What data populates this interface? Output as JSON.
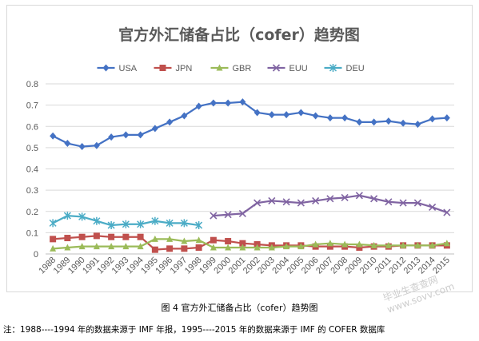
{
  "chart_data": {
    "type": "line",
    "title": "官方外汇储备占比（cofer）趋势图",
    "xlabel": "",
    "ylabel": "",
    "ylim": [
      0,
      0.8
    ],
    "yticks": [
      "0",
      "0.1",
      "0.2",
      "0.3",
      "0.4",
      "0.5",
      "0.6",
      "0.7",
      "0.8"
    ],
    "categories": [
      "1988",
      "1989",
      "1990",
      "1991",
      "1992",
      "1993",
      "1994",
      "1995",
      "1996",
      "1997",
      "1998",
      "1999",
      "2000",
      "2001",
      "2002",
      "2003",
      "2004",
      "2005",
      "2006",
      "2007",
      "2008",
      "2009",
      "2010",
      "2011",
      "2012",
      "2013",
      "2014",
      "2015"
    ],
    "grid": true,
    "legend_position": "top",
    "series": [
      {
        "name": "USA",
        "color": "#4472c4",
        "marker": "diamond",
        "values": [
          0.555,
          0.52,
          0.505,
          0.51,
          0.55,
          0.56,
          0.56,
          0.59,
          0.62,
          0.65,
          0.695,
          0.71,
          0.71,
          0.715,
          0.665,
          0.655,
          0.655,
          0.665,
          0.65,
          0.64,
          0.64,
          0.62,
          0.62,
          0.625,
          0.615,
          0.61,
          0.635,
          0.64
        ]
      },
      {
        "name": "JPN",
        "color": "#c0504d",
        "marker": "square",
        "values": [
          0.07,
          0.075,
          0.08,
          0.085,
          0.08,
          0.08,
          0.08,
          0.02,
          0.025,
          0.025,
          0.03,
          0.065,
          0.06,
          0.05,
          0.045,
          0.04,
          0.04,
          0.04,
          0.035,
          0.035,
          0.035,
          0.03,
          0.035,
          0.035,
          0.04,
          0.04,
          0.04,
          0.04
        ]
      },
      {
        "name": "GBR",
        "color": "#9bbb59",
        "marker": "triangle",
        "values": [
          0.025,
          0.03,
          0.035,
          0.035,
          0.035,
          0.035,
          0.035,
          0.07,
          0.07,
          0.06,
          0.065,
          0.03,
          0.03,
          0.03,
          0.03,
          0.03,
          0.035,
          0.035,
          0.045,
          0.05,
          0.045,
          0.045,
          0.04,
          0.04,
          0.04,
          0.04,
          0.04,
          0.05
        ]
      },
      {
        "name": "EUU",
        "color": "#8064a2",
        "marker": "x",
        "values": [
          null,
          null,
          null,
          null,
          null,
          null,
          null,
          null,
          null,
          null,
          null,
          0.18,
          0.185,
          0.19,
          0.24,
          0.25,
          0.245,
          0.24,
          0.25,
          0.26,
          0.265,
          0.275,
          0.26,
          0.245,
          0.24,
          0.24,
          0.22,
          0.195
        ]
      },
      {
        "name": "DEU",
        "color": "#4bacc6",
        "marker": "star",
        "values": [
          0.145,
          0.18,
          0.175,
          0.155,
          0.135,
          0.14,
          0.14,
          0.155,
          0.145,
          0.145,
          0.135,
          null,
          null,
          null,
          null,
          null,
          null,
          null,
          null,
          null,
          null,
          null,
          null,
          null,
          null,
          null,
          null,
          null
        ]
      }
    ]
  },
  "caption": "图 4  官方外汇储备占比（cofer）趋势图",
  "note": "注：1988----1994 年的数据来源于 IMF 年报，1995----2015 年的数据来源于 IMF 的 COFER 数据库",
  "watermark": "毕业生查查网 www.sovv.com"
}
